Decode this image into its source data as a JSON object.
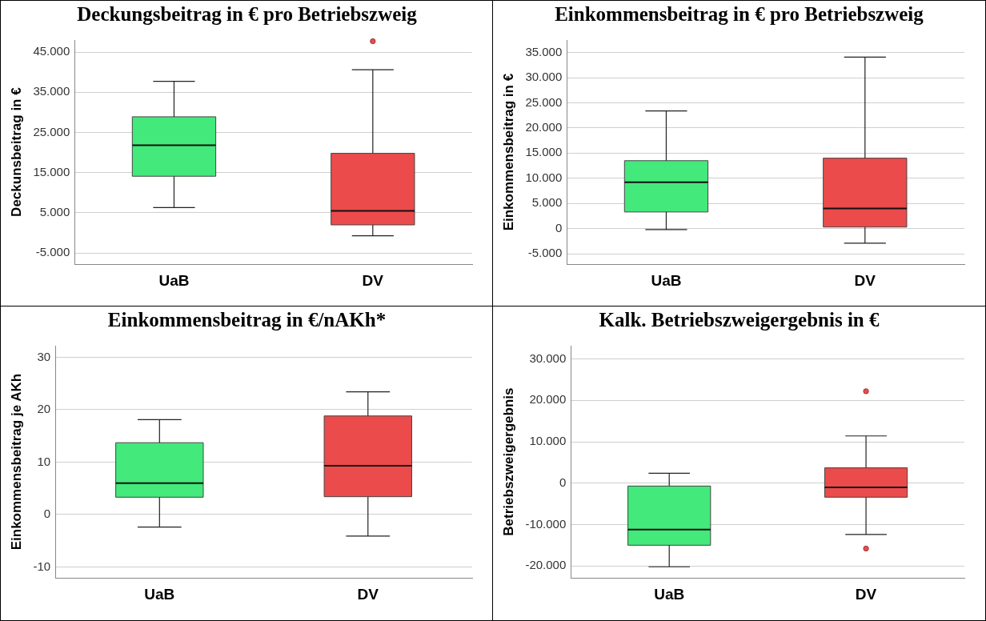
{
  "chart_data": [
    {
      "type": "box",
      "title": "Deckungsbeitrag in € pro Betriebszweig",
      "ylabel": "Deckunsbeitrag in €",
      "categories": [
        "UaB",
        "DV"
      ],
      "colors": [
        "#43e97b",
        "#eb4b4b"
      ],
      "grid": "y",
      "ylim": [
        -7800,
        48000
      ],
      "yticks": [
        {
          "value": -5000,
          "label": "-5.000"
        },
        {
          "value": 5000,
          "label": "5.000"
        },
        {
          "value": 15000,
          "label": "15.000"
        },
        {
          "value": 25000,
          "label": "25.000"
        },
        {
          "value": 35000,
          "label": "35.000"
        },
        {
          "value": 45000,
          "label": "45.000"
        }
      ],
      "boxes": [
        {
          "low": 6300,
          "q1": 14100,
          "median": 21800,
          "q3": 28900,
          "high": 37700
        },
        {
          "low": -700,
          "q1": 2000,
          "median": 5500,
          "q3": 19800,
          "high": 40600,
          "outliers": [
            47700
          ]
        }
      ]
    },
    {
      "type": "box",
      "title": "Einkommensbeitrag in € pro Betriebszweig",
      "ylabel": "Einkommensbeitrag in €",
      "categories": [
        "UaB",
        "DV"
      ],
      "colors": [
        "#43e97b",
        "#eb4b4b"
      ],
      "grid": "y",
      "ylim": [
        -7100,
        37500
      ],
      "yticks": [
        {
          "value": -5000,
          "label": "-5.000"
        },
        0,
        {
          "value": 5000,
          "label": "5.000"
        },
        {
          "value": 10000,
          "label": "10.000"
        },
        {
          "value": 15000,
          "label": "15.000"
        },
        {
          "value": 20000,
          "label": "20.000"
        },
        {
          "value": 25000,
          "label": "25.000"
        },
        {
          "value": 30000,
          "label": "30.000"
        },
        {
          "value": 35000,
          "label": "35.000"
        }
      ],
      "boxes": [
        {
          "low": -200,
          "q1": 3300,
          "median": 9200,
          "q3": 13500,
          "high": 23400
        },
        {
          "low": -2900,
          "q1": 300,
          "median": 4000,
          "q3": 14000,
          "high": 34100
        }
      ]
    },
    {
      "type": "box",
      "title": "Einkommensbeitrag in €/nAKh*",
      "ylabel": "Einkommensbeitrag je AKh",
      "categories": [
        "UaB",
        "DV"
      ],
      "colors": [
        "#43e97b",
        "#eb4b4b"
      ],
      "grid": "y",
      "ylim": [
        -12.1,
        32.2
      ],
      "yticks": [
        -10,
        0,
        10,
        20,
        30
      ],
      "boxes": [
        {
          "low": -2.4,
          "q1": 3.3,
          "median": 6.0,
          "q3": 13.7,
          "high": 18.1
        },
        {
          "low": -4.1,
          "q1": 3.4,
          "median": 9.3,
          "q3": 18.8,
          "high": 23.4
        }
      ]
    },
    {
      "type": "box",
      "title": "Kalk. Betriebszweigergebnis in €",
      "ylabel": "Betriebszweigergebnis",
      "categories": [
        "UaB",
        "DV"
      ],
      "colors": [
        "#43e97b",
        "#eb4b4b"
      ],
      "grid": "y",
      "ylim": [
        -22900,
        33200
      ],
      "yticks": [
        {
          "value": -20000,
          "label": "-20.000"
        },
        {
          "value": -10000,
          "label": "-10.000"
        },
        0,
        {
          "value": 10000,
          "label": "10.000"
        },
        {
          "value": 20000,
          "label": "20.000"
        },
        {
          "value": 30000,
          "label": "30.000"
        }
      ],
      "boxes": [
        {
          "low": -20200,
          "q1": -15000,
          "median": -11200,
          "q3": -700,
          "high": 2400
        },
        {
          "low": -12400,
          "q1": -3400,
          "median": -1000,
          "q3": 3700,
          "high": 11400,
          "outliers": [
            22200,
            -15800
          ]
        }
      ]
    }
  ]
}
